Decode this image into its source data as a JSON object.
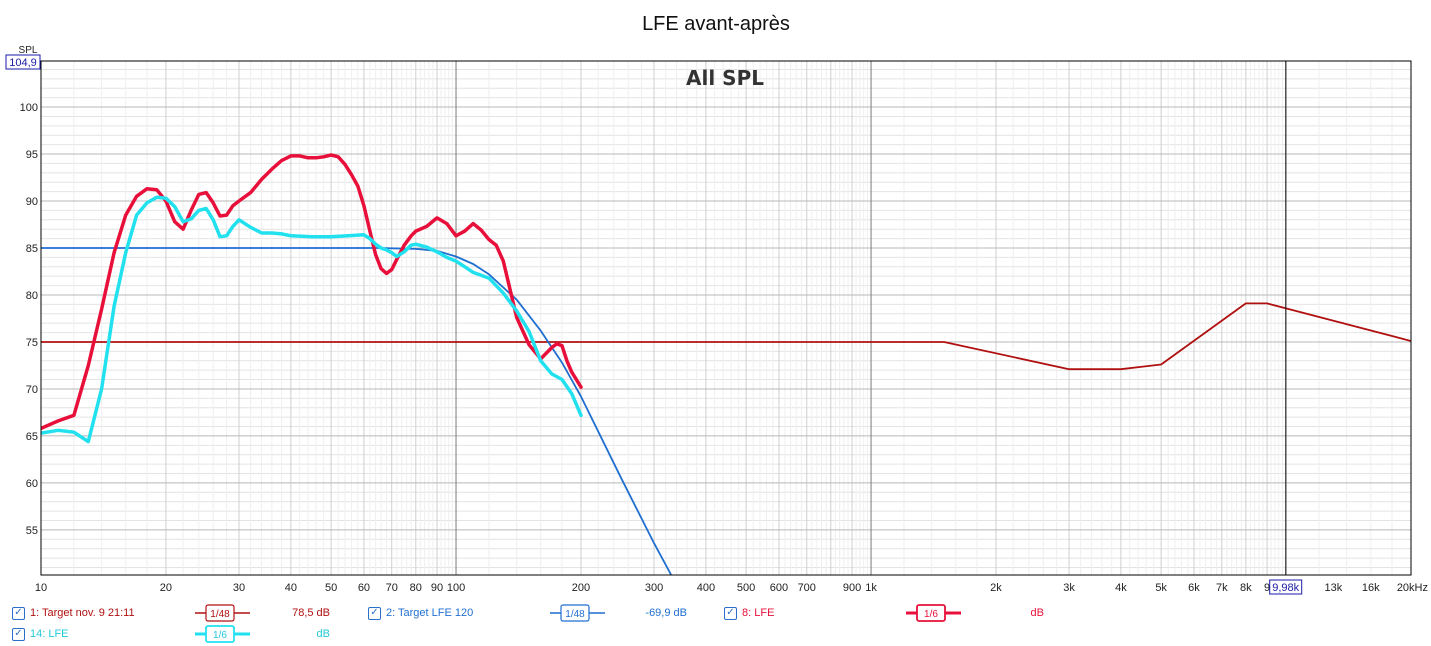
{
  "chart_data": {
    "type": "line",
    "title": "LFE avant-après",
    "subtitle": "All SPL",
    "ylabel": "SPL",
    "x_scale": "log",
    "xlim": [
      10,
      20000
    ],
    "ylim": [
      50.2,
      104.9
    ],
    "y_cursor_label": "104,9",
    "x_cursor_label": "9,98k",
    "x_cursor_value": 9980,
    "grid": true,
    "y_ticks": [
      55,
      60,
      65,
      70,
      75,
      80,
      85,
      90,
      95,
      100
    ],
    "x_tick_labels": [
      {
        "v": 10,
        "t": "10"
      },
      {
        "v": 20,
        "t": "20"
      },
      {
        "v": 30,
        "t": "30"
      },
      {
        "v": 40,
        "t": "40"
      },
      {
        "v": 50,
        "t": "50"
      },
      {
        "v": 60,
        "t": "60"
      },
      {
        "v": 70,
        "t": "70"
      },
      {
        "v": 80,
        "t": "80"
      },
      {
        "v": 90,
        "t": "90"
      },
      {
        "v": 100,
        "t": "100"
      },
      {
        "v": 200,
        "t": "200"
      },
      {
        "v": 300,
        "t": "300"
      },
      {
        "v": 400,
        "t": "400"
      },
      {
        "v": 500,
        "t": "500"
      },
      {
        "v": 600,
        "t": "600"
      },
      {
        "v": 700,
        "t": "700"
      },
      {
        "v": 900,
        "t": "900"
      },
      {
        "v": 1000,
        "t": "1k"
      },
      {
        "v": 2000,
        "t": "2k"
      },
      {
        "v": 3000,
        "t": "3k"
      },
      {
        "v": 4000,
        "t": "4k"
      },
      {
        "v": 5000,
        "t": "5k"
      },
      {
        "v": 6000,
        "t": "6k"
      },
      {
        "v": 7000,
        "t": "7k"
      },
      {
        "v": 8000,
        "t": "8k"
      },
      {
        "v": 9000,
        "t": "9"
      },
      {
        "v": 13000,
        "t": "13k"
      },
      {
        "v": 16000,
        "t": "16k"
      },
      {
        "v": 20000,
        "t": "20kHz"
      }
    ],
    "series": [
      {
        "name": "1: Target nov. 9 21:11",
        "color": "#b01010",
        "smoothing_label": "1/48",
        "value_label": "78,5 dB",
        "x": [
          10,
          1500,
          3000,
          4000,
          5000,
          8000,
          9000,
          20000
        ],
        "y": [
          75,
          75,
          72.1,
          72.1,
          72.6,
          79.1,
          79.1,
          75.1
        ]
      },
      {
        "name": "2: Target LFE 120",
        "color": "#1f6fd0",
        "smoothing_label": "1/48",
        "value_label": "-69,9 dB",
        "x": [
          10,
          50,
          65,
          80,
          90,
          100,
          110,
          120,
          140,
          160,
          180,
          200,
          250,
          300,
          330
        ],
        "y": [
          85,
          85,
          85,
          84.9,
          84.7,
          84.1,
          83.3,
          82.2,
          79.5,
          76.2,
          72.8,
          69.2,
          60.5,
          53.6,
          50.2
        ]
      },
      {
        "name": "8: LFE",
        "color": "#e8103a",
        "smoothing_label": "1/6",
        "value_label": "dB",
        "x": [
          10,
          11,
          12,
          13,
          14,
          15,
          16,
          17,
          18,
          19,
          20,
          21,
          22,
          23,
          24,
          25,
          26,
          27,
          28,
          29,
          30,
          32,
          34,
          36,
          38,
          40,
          42,
          44,
          46,
          48,
          50,
          52,
          54,
          56,
          58,
          60,
          62,
          64,
          66,
          68,
          70,
          72,
          75,
          78,
          80,
          85,
          90,
          95,
          100,
          105,
          110,
          115,
          120,
          125,
          130,
          140,
          150,
          160,
          170,
          175,
          180,
          185,
          190,
          200
        ],
        "y": [
          65.8,
          66.6,
          67.2,
          72.5,
          78.5,
          84.5,
          88.5,
          90.5,
          91.3,
          91.2,
          90,
          87.8,
          87,
          89,
          90.7,
          90.9,
          89.8,
          88.4,
          88.5,
          89.5,
          90,
          90.9,
          92.3,
          93.4,
          94.3,
          94.8,
          94.8,
          94.6,
          94.6,
          94.7,
          94.9,
          94.7,
          93.9,
          92.8,
          91.6,
          89.5,
          86.8,
          84.3,
          82.8,
          82.3,
          82.7,
          83.8,
          85.3,
          86.3,
          86.8,
          87.3,
          88.2,
          87.6,
          86.3,
          86.8,
          87.6,
          86.9,
          85.9,
          85.3,
          83.6,
          77.6,
          74.7,
          73.2,
          74.4,
          74.8,
          74.6,
          73.0,
          71.8,
          70.2
        ]
      },
      {
        "name": "14: LFE",
        "color": "#22e1ef",
        "smoothing_label": "1/6",
        "value_label": "dB",
        "x": [
          10,
          11,
          12,
          13,
          14,
          15,
          16,
          17,
          18,
          19,
          20,
          21,
          22,
          23,
          24,
          25,
          26,
          27,
          28,
          29,
          30,
          32,
          34,
          36,
          38,
          40,
          45,
          50,
          55,
          60,
          62,
          64,
          66,
          68,
          70,
          72,
          75,
          78,
          80,
          85,
          90,
          95,
          100,
          105,
          110,
          120,
          130,
          140,
          150,
          160,
          170,
          180,
          190,
          200
        ],
        "y": [
          65.3,
          65.6,
          65.4,
          64.4,
          70,
          78.8,
          84.5,
          88.5,
          89.8,
          90.4,
          90.3,
          89.4,
          87.8,
          88.1,
          89.0,
          89.2,
          88.0,
          86.2,
          86.3,
          87.3,
          88.0,
          87.2,
          86.6,
          86.6,
          86.5,
          86.3,
          86.2,
          86.2,
          86.3,
          86.4,
          86.0,
          85.4,
          85.0,
          84.8,
          84.5,
          84.1,
          84.6,
          85.3,
          85.4,
          85.1,
          84.6,
          84.0,
          83.6,
          83.0,
          82.4,
          81.8,
          80.2,
          78.3,
          76.1,
          73.0,
          71.6,
          71.0,
          69.5,
          67.2
        ]
      }
    ]
  }
}
